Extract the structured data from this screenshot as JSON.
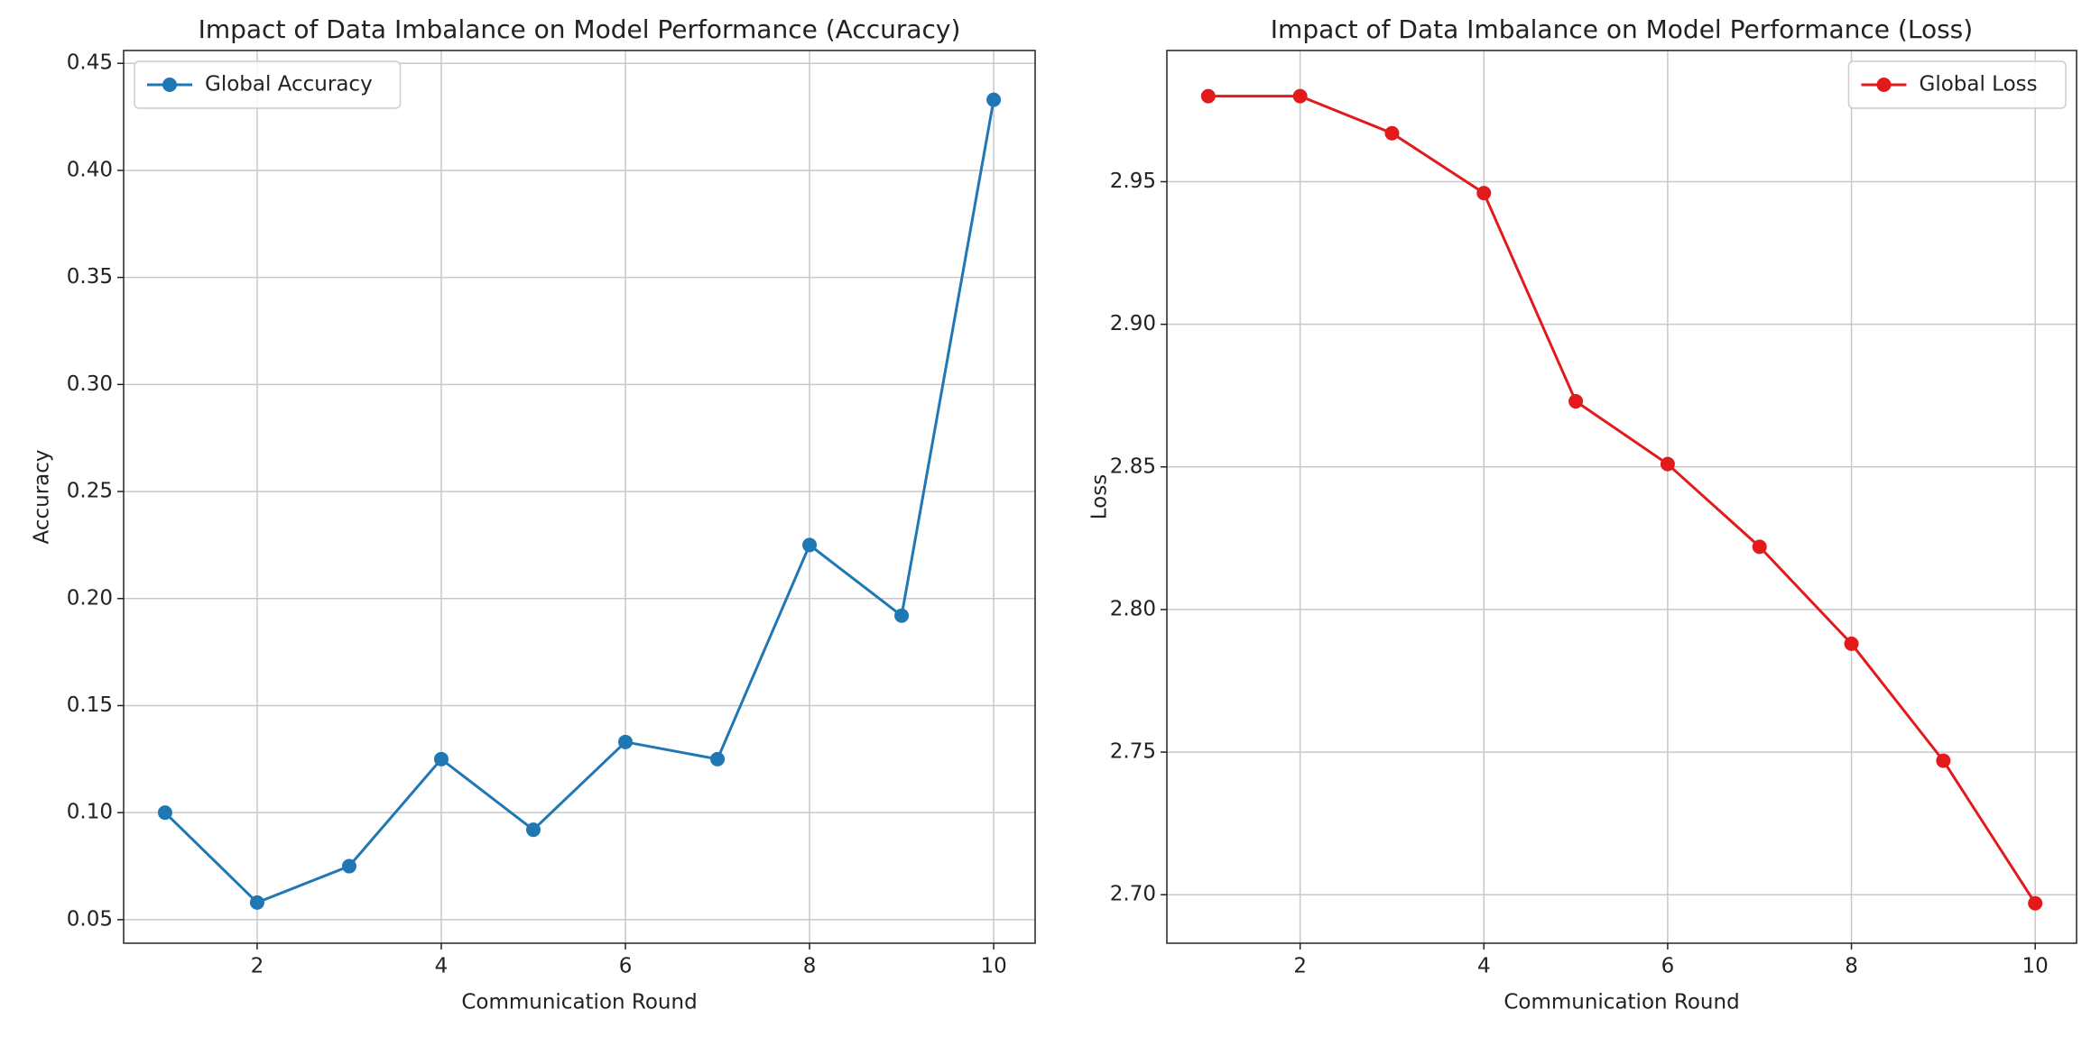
{
  "chart_data": [
    {
      "type": "line",
      "title": "Impact of Data Imbalance on Model Performance (Accuracy)",
      "x_label": "Communication Round",
      "y_label": "Accuracy",
      "x": [
        1,
        2,
        3,
        4,
        5,
        6,
        7,
        8,
        9,
        10
      ],
      "series": [
        {
          "name": "Global Accuracy",
          "color": "#1f77b4",
          "values": [
            0.1,
            0.058,
            0.075,
            0.125,
            0.092,
            0.133,
            0.125,
            0.225,
            0.192,
            0.433
          ]
        }
      ],
      "xlim": [
        0.55,
        10.45
      ],
      "ylim": [
        0.039,
        0.456
      ],
      "xticks": [
        2,
        4,
        6,
        8,
        10
      ],
      "yticks": [
        0.05,
        {
          "value": 0.1,
          "label": "0.10"
        },
        0.15,
        {
          "value": 0.2,
          "label": "0.20"
        },
        0.25,
        {
          "value": 0.3,
          "label": "0.30"
        },
        0.35,
        {
          "value": 0.4,
          "label": "0.40"
        },
        0.45
      ],
      "grid": true,
      "legend": "upper left"
    },
    {
      "type": "line",
      "title": "Impact of Data Imbalance on Model Performance (Loss)",
      "x_label": "Communication Round",
      "y_label": "Loss",
      "x": [
        1,
        2,
        3,
        4,
        5,
        6,
        7,
        8,
        9,
        10
      ],
      "series": [
        {
          "name": "Global Loss",
          "color": "#e31a1c",
          "values": [
            2.98,
            2.98,
            2.967,
            2.946,
            2.873,
            2.851,
            2.822,
            2.788,
            2.747,
            2.697
          ]
        }
      ],
      "xlim": [
        0.55,
        10.45
      ],
      "ylim": [
        2.683,
        2.996
      ],
      "xticks": [
        2,
        4,
        6,
        8,
        10
      ],
      "yticks": [
        {
          "value": 2.7,
          "label": "2.70"
        },
        2.75,
        {
          "value": 2.8,
          "label": "2.80"
        },
        2.85,
        {
          "value": 2.9,
          "label": "2.90"
        },
        2.95
      ],
      "grid": true,
      "legend": "upper right"
    }
  ]
}
